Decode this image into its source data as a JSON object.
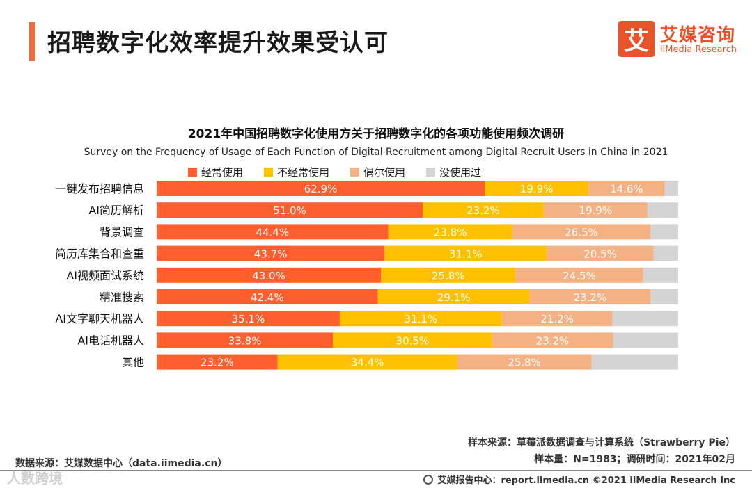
{
  "page": {
    "title": "招聘数字化效率提升效果受认可",
    "logo_mark": "艾",
    "logo_cn": "艾媒咨询",
    "logo_en": "iiMedia Research"
  },
  "colors": {
    "accent": "#f26b3a",
    "series": [
      "#ff5f2e",
      "#ffc000",
      "#f4b183",
      "#d4d4d4"
    ]
  },
  "chart_data": {
    "type": "bar",
    "orientation": "horizontal",
    "stacked": true,
    "title": "2021年中国招聘数字化使用方关于招聘数字化的各项功能使用频次调研",
    "subtitle": "Survey on the Frequency  of Usage of Each Function of Digital Recruitment among Digital Recruit Users in China in 2021",
    "legend_position": "top",
    "xlim": [
      0,
      100
    ],
    "unit": "%",
    "categories": [
      "一键发布招聘信息",
      "AI简历解析",
      "背景调查",
      "简历库集合和查重",
      "AI视频面试系统",
      "精准搜索",
      "AI文字聊天机器人",
      "AI电话机器人",
      "其他"
    ],
    "series": [
      {
        "name": "经常使用",
        "values": [
          62.9,
          51.0,
          44.4,
          43.7,
          43.0,
          42.4,
          35.1,
          33.8,
          23.2
        ]
      },
      {
        "name": "不经常使用",
        "values": [
          19.9,
          23.2,
          23.8,
          31.1,
          25.8,
          29.1,
          31.1,
          30.5,
          34.4
        ]
      },
      {
        "name": "偶尔使用",
        "values": [
          14.6,
          19.9,
          26.5,
          20.5,
          24.5,
          23.2,
          21.2,
          23.2,
          25.8
        ]
      },
      {
        "name": "没使用过",
        "values": [
          2.6,
          5.9,
          5.3,
          4.7,
          6.7,
          5.3,
          12.6,
          12.5,
          16.6
        ]
      }
    ],
    "labeled_series": [
      0,
      1,
      2
    ]
  },
  "sources": {
    "left": "数据来源：艾媒数据中心（data.iimedia.cn）",
    "right_1": "样本来源：草莓派数据调查与计算系统（Strawberry Pie）",
    "right_2": "样本量：N=1983；调研时间：2021年02月"
  },
  "footer": {
    "text": "艾媒报告中心：report.iimedia.cn  ©2021  iiMedia Research  Inc"
  },
  "watermark": "人数跨境"
}
